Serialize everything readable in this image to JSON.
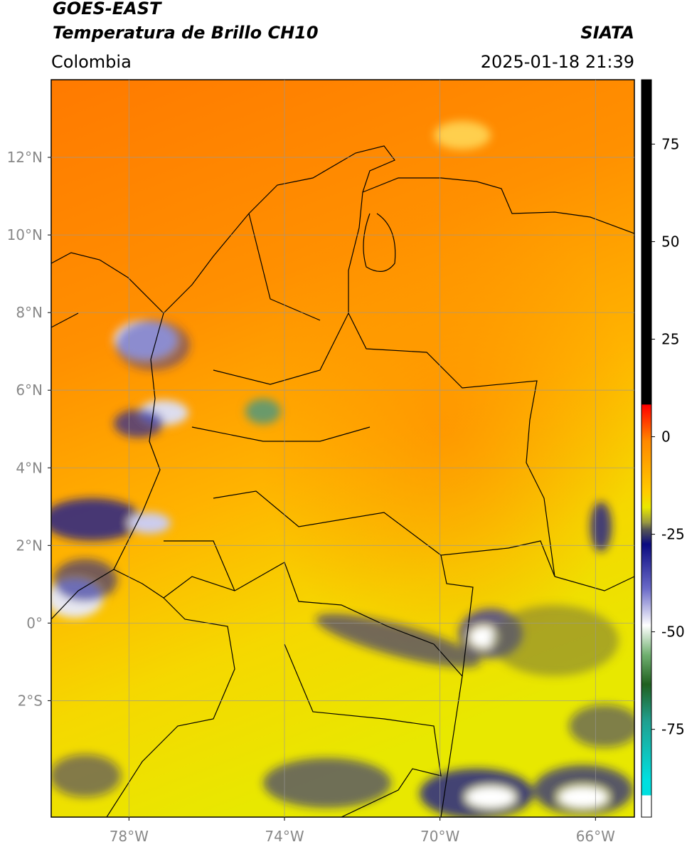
{
  "header": {
    "satellite": "GOES-EAST",
    "product": "Temperatura de Brillo CH10",
    "source": "SIATA",
    "region": "Colombia",
    "timestamp": "2025-01-18 21:39"
  },
  "map": {
    "xlim": [
      -80,
      -65
    ],
    "ylim": [
      -5,
      14
    ],
    "grid": true,
    "xticks": [
      {
        "value": -78,
        "label": "78°W"
      },
      {
        "value": -74,
        "label": "74°W"
      },
      {
        "value": -70,
        "label": "70°W"
      },
      {
        "value": -66,
        "label": "66°W"
      }
    ],
    "yticks": [
      {
        "value": 12,
        "label": "12°N"
      },
      {
        "value": 10,
        "label": "10°N"
      },
      {
        "value": 8,
        "label": "8°N"
      },
      {
        "value": 6,
        "label": "6°N"
      },
      {
        "value": 4,
        "label": "4°N"
      },
      {
        "value": 2,
        "label": "2°N"
      },
      {
        "value": 0,
        "label": "0°"
      },
      {
        "value": -2,
        "label": "2°S"
      }
    ]
  },
  "colorbar": {
    "lim": [
      -97.5,
      91.5
    ],
    "ticks": [
      75,
      50,
      25,
      0,
      -25,
      -50,
      -75
    ]
  }
}
